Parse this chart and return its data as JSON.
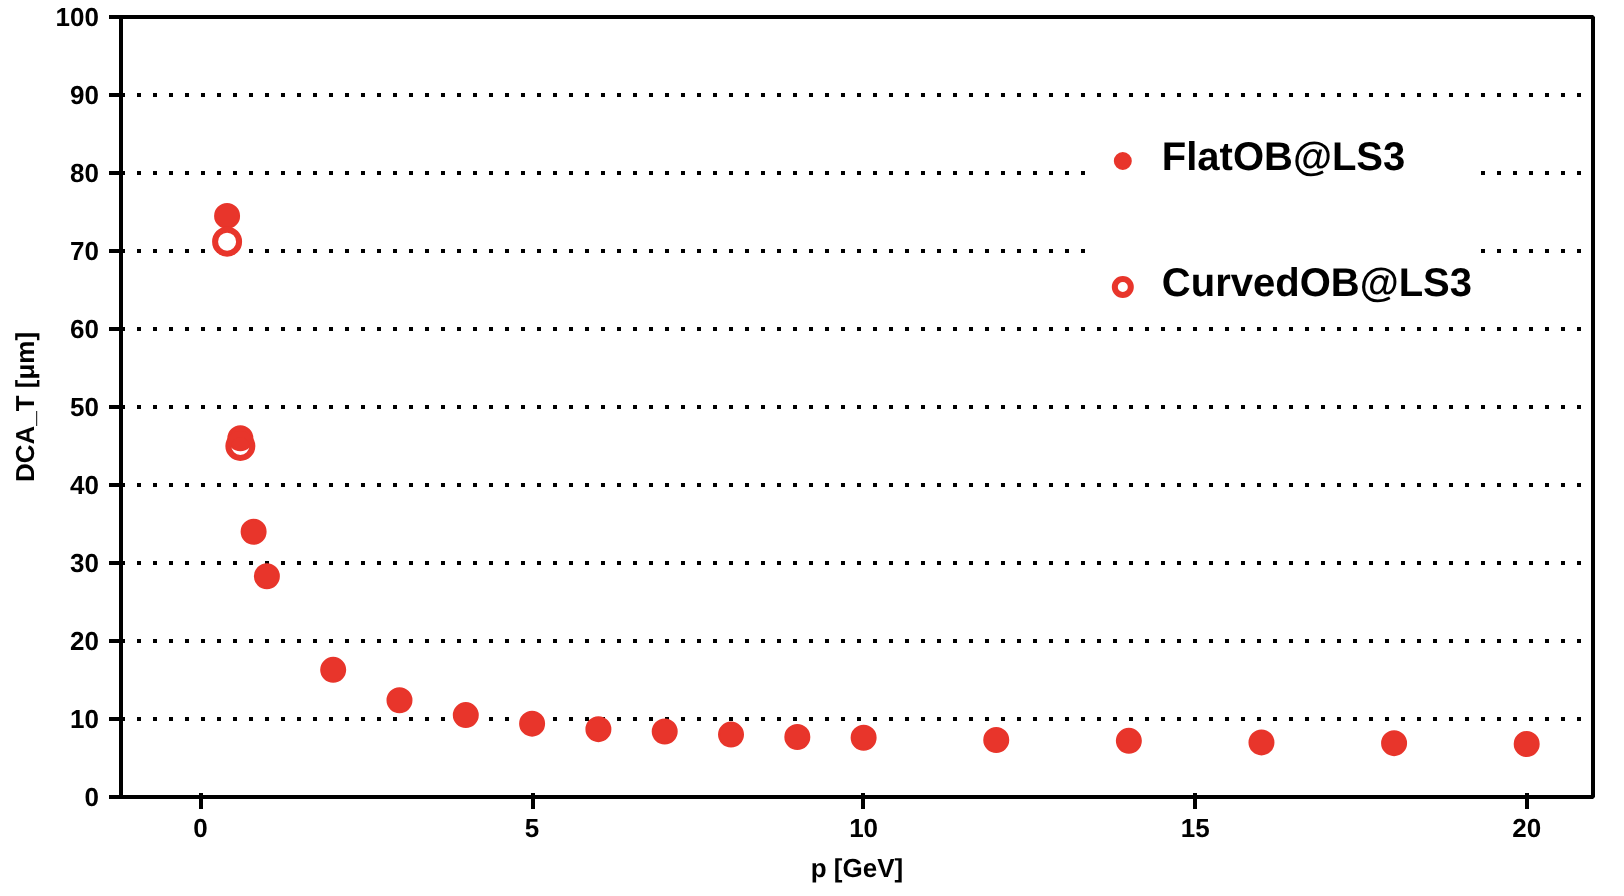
{
  "chart_data": {
    "type": "scatter",
    "xlabel": "p [GeV]",
    "ylabel": "DCA_T [μm]",
    "x": [
      0.4,
      0.6,
      0.8,
      1,
      2,
      3,
      4,
      5,
      6,
      7,
      8,
      9,
      10,
      12,
      14,
      16,
      18,
      20
    ],
    "series": [
      {
        "name": "FlatOB@LS3",
        "color": "#e8352b",
        "marker": "circle",
        "values": [
          74.5,
          46,
          34,
          28.3,
          16.3,
          12.4,
          10.5,
          9.4,
          8.7,
          8.4,
          8.0,
          7.7,
          7.6,
          7.3,
          7.2,
          7.0,
          6.9,
          6.8
        ]
      },
      {
        "name": "CurvedOB@LS3",
        "color": "#e8352b",
        "marker": "circle_open",
        "values": [
          71.2,
          45,
          null,
          null,
          null,
          null,
          null,
          null,
          null,
          null,
          null,
          null,
          null,
          null,
          null,
          null,
          null,
          null
        ]
      }
    ],
    "xlim": [
      -1.2,
      21
    ],
    "ylim": [
      0,
      100
    ],
    "xticks": [
      0,
      5,
      10,
      15,
      20
    ],
    "yticks": [
      0,
      10,
      20,
      30,
      40,
      50,
      60,
      70,
      80,
      90,
      100
    ],
    "grid": "y",
    "legend": "top right"
  }
}
